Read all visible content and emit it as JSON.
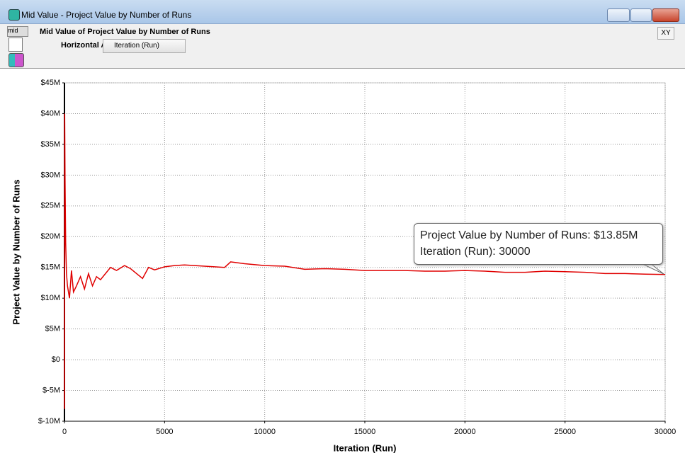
{
  "window": {
    "title": "Mid Value - Project Value by Number of Runs",
    "mid_button": "mid",
    "chart_heading": "Mid Value of Project Value by Number of Runs",
    "axis_selector_label": "Horizontal Axis:",
    "axis_selector_value": "Iteration (Run)",
    "xy_button": "XY"
  },
  "chart_data": {
    "type": "line",
    "x_label": "Iteration (Run)",
    "y_label": "Project Value by Number of Runs",
    "tooltip": [
      "Project Value by Number of Runs: $13.85M",
      "Iteration (Run): 30000"
    ],
    "x": [
      0,
      10,
      30,
      60,
      100,
      150,
      250,
      350,
      450,
      600,
      800,
      1000,
      1200,
      1400,
      1600,
      1800,
      2000,
      2300,
      2600,
      3000,
      3300,
      3600,
      3900,
      4200,
      4500,
      5000,
      5500,
      6000,
      7000,
      8000,
      8300,
      9000,
      10000,
      11000,
      12000,
      13000,
      14000,
      15000,
      16000,
      17000,
      18000,
      19000,
      20000,
      21000,
      22000,
      23000,
      24000,
      25000,
      26000,
      27000,
      28000,
      29000,
      30000
    ],
    "series": [
      {
        "name": "Project Value by Number of Runs",
        "color": "#e00000",
        "values": [
          -8000000,
          40000000,
          29000000,
          19000000,
          14000000,
          12000000,
          10000000,
          14500000,
          11000000,
          12000000,
          13500000,
          11500000,
          14000000,
          12000000,
          13500000,
          13000000,
          13800000,
          15000000,
          14500000,
          15300000,
          14800000,
          14000000,
          13200000,
          15000000,
          14600000,
          15100000,
          15300000,
          15400000,
          15200000,
          15000000,
          15900000,
          15600000,
          15300000,
          15200000,
          14700000,
          14800000,
          14700000,
          14500000,
          14500000,
          14500000,
          14400000,
          14400000,
          14500000,
          14400000,
          14200000,
          14200000,
          14400000,
          14300000,
          14200000,
          14000000,
          14000000,
          13900000,
          13850000
        ]
      }
    ],
    "xlim": [
      0,
      30000
    ],
    "xticks": [
      0,
      5000,
      10000,
      15000,
      20000,
      25000,
      30000
    ],
    "ylim": [
      -10000000,
      45000000
    ],
    "yticks": [
      {
        "value": -10000000,
        "label": "$-10M"
      },
      {
        "value": -5000000,
        "label": "$-5M"
      },
      {
        "value": 0,
        "label": "$0"
      },
      {
        "value": 5000000,
        "label": "$5M"
      },
      {
        "value": 10000000,
        "label": "$10M"
      },
      {
        "value": 15000000,
        "label": "$15M"
      },
      {
        "value": 20000000,
        "label": "$20M"
      },
      {
        "value": 25000000,
        "label": "$25M"
      },
      {
        "value": 30000000,
        "label": "$30M"
      },
      {
        "value": 35000000,
        "label": "$35M"
      },
      {
        "value": 40000000,
        "label": "$40M"
      },
      {
        "value": 45000000,
        "label": "$45M"
      }
    ],
    "grid": true
  }
}
